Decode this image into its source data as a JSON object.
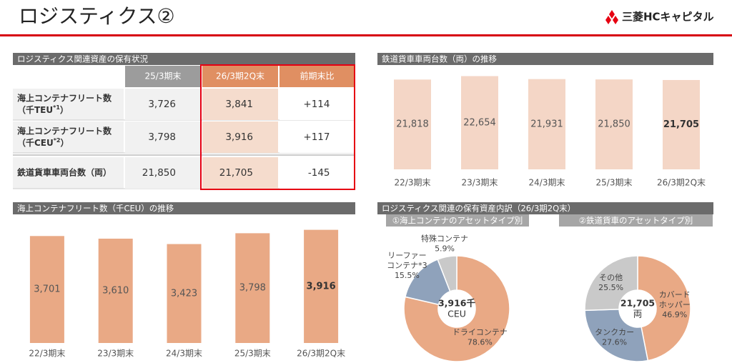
{
  "header": {
    "title": "ロジスティクス②",
    "logo": "三菱HCキャピタル"
  },
  "table": {
    "title": "ロジスティクス関連資産の保有状況",
    "columns": [
      "25/3期末",
      "26/3期2Q末",
      "前期末比"
    ],
    "rows": [
      {
        "label": "海上コンテナフリート数",
        "unit": "（千TEU",
        "note": "*1",
        "unit_close": "）",
        "cells": [
          "3,726",
          "3,841",
          "+114"
        ]
      },
      {
        "label": "海上コンテナフリート数",
        "unit": "（千CEU",
        "note": "*2",
        "unit_close": "）",
        "cells": [
          "3,798",
          "3,916",
          "+117"
        ]
      },
      {
        "label": "鉄道貨車車両台数（両）",
        "cells": [
          "21,850",
          "21,705",
          "-145"
        ]
      }
    ]
  },
  "donut_panel": {
    "title": "ロジスティクス関連の保有資産内訳（26/3期2Q末）"
  },
  "chart_data": [
    {
      "type": "bar",
      "title": "鉄道貨車車両台数（両）の推移",
      "categories": [
        "22/3期末",
        "23/3期末",
        "24/3期末",
        "25/3期末",
        "26/3期2Q末"
      ],
      "values": [
        21818,
        22654,
        21931,
        21850,
        21705
      ],
      "value_labels": [
        "21,818",
        "22,654",
        "21,931",
        "21,850",
        "21,705"
      ],
      "color": "#f4d6c6",
      "ylim": [
        0,
        25000
      ]
    },
    {
      "type": "bar",
      "title": "海上コンテナフリート数（千CEU）の推移",
      "categories": [
        "22/3期末",
        "23/3期末",
        "24/3期末",
        "25/3期末",
        "26/3期2Q末"
      ],
      "values": [
        3701,
        3610,
        3423,
        3798,
        3916
      ],
      "value_labels": [
        "3,701",
        "3,610",
        "3,423",
        "3,798",
        "3,916"
      ],
      "color": "#e9a985",
      "ylim": [
        0,
        4500
      ]
    },
    {
      "type": "pie",
      "title": "①海上コンテナのアセットタイプ別",
      "categories": [
        [
          "ドライコンテナ"
        ],
        [
          "リーファー",
          "コンテナ*3"
        ],
        [
          "特殊コンテナ"
        ]
      ],
      "values": [
        78.6,
        15.5,
        5.9
      ],
      "value_labels": [
        "78.6%",
        "15.5%",
        "5.9%"
      ],
      "colors": [
        "#e9a985",
        "#8fa2bb",
        "#c9c9c9"
      ],
      "center_label": [
        "3,916千",
        "CEU"
      ]
    },
    {
      "type": "pie",
      "title": "②鉄道貨車のアセットタイプ別",
      "categories": [
        [
          "カバード",
          "ホッパー"
        ],
        [
          "タンクカー"
        ],
        [
          "その他"
        ]
      ],
      "values": [
        46.9,
        27.6,
        25.5
      ],
      "value_labels": [
        "46.9%",
        "27.6%",
        "25.5%"
      ],
      "colors": [
        "#e9a985",
        "#8fa2bb",
        "#c9c9c9"
      ],
      "center_label": [
        "21,705",
        "両"
      ]
    }
  ]
}
